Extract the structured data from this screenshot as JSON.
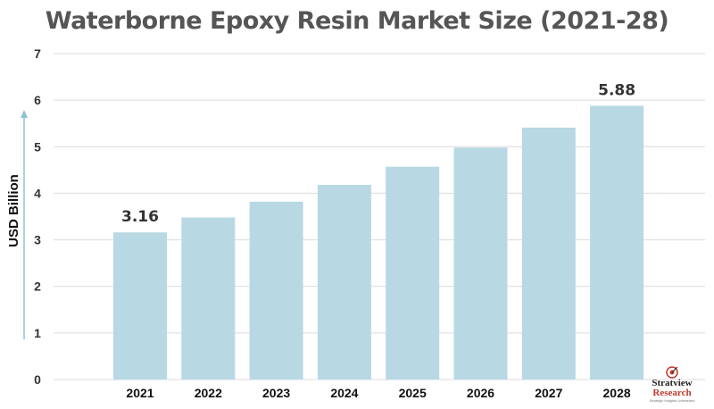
{
  "chart_data": {
    "type": "bar",
    "title": "Waterborne Epoxy Resin Market Size (2021-28)",
    "xlabel": "",
    "ylabel": "USD Billion",
    "categories": [
      "2021",
      "2022",
      "2023",
      "2024",
      "2025",
      "2026",
      "2027",
      "2028"
    ],
    "values": [
      3.16,
      3.48,
      3.82,
      4.18,
      4.57,
      4.98,
      5.41,
      5.88
    ],
    "data_labels": [
      {
        "category": "2021",
        "text": "3.16"
      },
      {
        "category": "2028",
        "text": "5.88"
      }
    ],
    "ylim": [
      0,
      7
    ],
    "yticks": [
      "0",
      "1",
      "2",
      "3",
      "4",
      "5",
      "6",
      "7"
    ],
    "grid": true,
    "bar_color": "#b8d8e4",
    "gridline_color": "#dcdcdc"
  },
  "logo": {
    "brand_line1": "Stratview",
    "brand_line2": "Research",
    "tagline": "Strategic Insights Unleashed"
  }
}
